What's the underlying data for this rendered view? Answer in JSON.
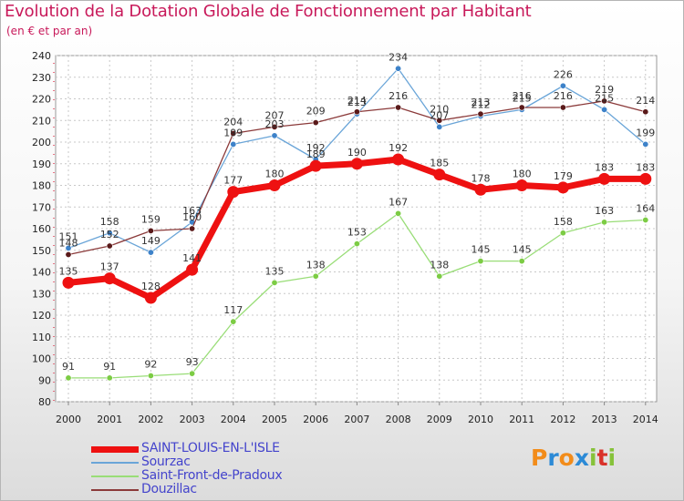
{
  "header": {
    "title": "Evolution de la Dotation Globale de Fonctionnement par Habitant",
    "subtitle": "(en € et par an)"
  },
  "colors": {
    "title": "#c8195a",
    "legend_text": "#4444cc",
    "grid": "#c8c8c8"
  },
  "logo": {
    "text": "Proxiti",
    "letters": [
      "P",
      "r",
      "o",
      "x",
      "i",
      "t",
      "i"
    ],
    "letter_colors": [
      "#f28c1a",
      "#2c8ad6",
      "#f28c1a",
      "#2c8ad6",
      "#86c23a",
      "#d9322a",
      "#86c23a"
    ]
  },
  "chart_data": {
    "type": "line",
    "title": "Evolution de la Dotation Globale de Fonctionnement par Habitant",
    "subtitle": "(en € et par an)",
    "xlabel": "",
    "ylabel": "",
    "x": [
      "2000",
      "2001",
      "2002",
      "2003",
      "2004",
      "2005",
      "2006",
      "2007",
      "2008",
      "2009",
      "2010",
      "2011",
      "2012",
      "2013",
      "2014"
    ],
    "ylim": [
      80,
      240
    ],
    "yticks": [
      "80",
      "90",
      "100",
      "110",
      "120",
      "130",
      "140",
      "150",
      "160",
      "170",
      "180",
      "190",
      "200",
      "210",
      "220",
      "230",
      "240"
    ],
    "grid": true,
    "series": [
      {
        "name": "Saint-Front-de-Pradoux",
        "color": "#99dd77",
        "marker": "#7ccc44",
        "width": 1.3,
        "msize": 3.2,
        "values": [
          91,
          91,
          92,
          93,
          117,
          135,
          138,
          153,
          167,
          138,
          145,
          145,
          158,
          163,
          164
        ],
        "labels": [
          "91",
          "91",
          "92",
          "93",
          "117",
          "135",
          "138",
          "153",
          "167",
          "138",
          "145",
          "145",
          "158",
          "163",
          "164"
        ]
      },
      {
        "name": "Sourzac",
        "color": "#6aa5d8",
        "marker": "#3d82c9",
        "width": 1.3,
        "msize": 3.2,
        "values": [
          151,
          158,
          149,
          163,
          199,
          203,
          192,
          213,
          234,
          207,
          212,
          215,
          226,
          215,
          199
        ],
        "labels": [
          "151",
          "158",
          "149",
          "163",
          "199",
          "203",
          "192",
          "213",
          "234",
          "207",
          "212",
          "215",
          "226",
          "215",
          "199"
        ]
      },
      {
        "name": "Douzillac",
        "color": "#8b3a3a",
        "marker": "#5a1a1a",
        "width": 1.3,
        "msize": 3.2,
        "values": [
          148,
          152,
          159,
          160,
          204,
          207,
          209,
          214,
          216,
          210,
          213,
          216,
          216,
          219,
          214
        ],
        "labels": [
          "148",
          "152",
          "159",
          "160",
          "204",
          "207",
          "209",
          "214",
          "216",
          "210",
          "213",
          "216",
          "216",
          "219",
          "214"
        ]
      },
      {
        "name": "SAINT-LOUIS-EN-L'ISLE",
        "color": "#ee1111",
        "marker": "#ee1111",
        "width": 7,
        "msize": 6.5,
        "values": [
          135,
          137,
          128,
          141,
          177,
          180,
          189,
          190,
          192,
          185,
          178,
          180,
          179,
          183,
          183
        ],
        "labels": [
          "135",
          "137",
          "128",
          "141",
          "177",
          "180",
          "189",
          "190",
          "192",
          "185",
          "178",
          "180",
          "179",
          "183",
          "183"
        ]
      }
    ],
    "legend": {
      "position": "bottom-left",
      "items": [
        {
          "name": "SAINT-LOUIS-EN-L'ISLE",
          "color": "#ee1111",
          "thickness": 7
        },
        {
          "name": "Sourzac",
          "color": "#6aa5d8",
          "thickness": 2
        },
        {
          "name": "Saint-Front-de-Pradoux",
          "color": "#99dd77",
          "thickness": 2
        },
        {
          "name": "Douzillac",
          "color": "#8b3a3a",
          "thickness": 2
        }
      ]
    }
  }
}
